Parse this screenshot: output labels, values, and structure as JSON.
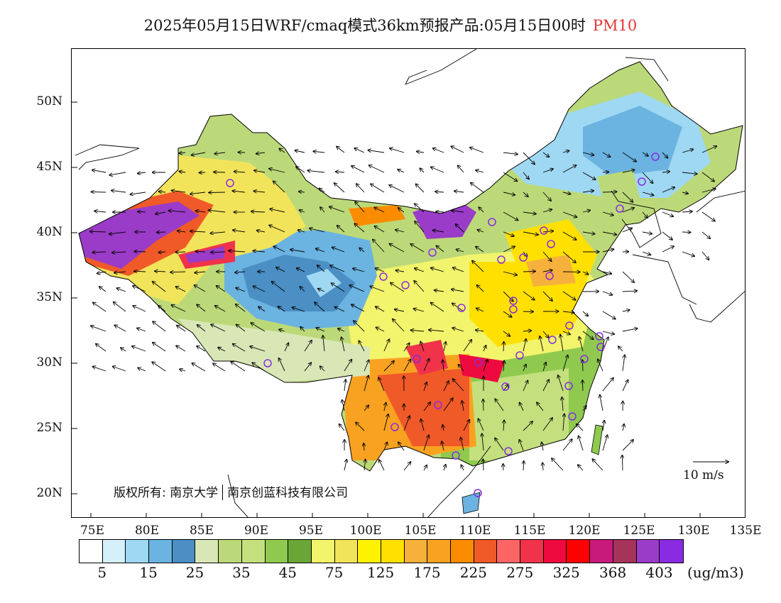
{
  "title": {
    "main": "2025年05月15日WRF/cmaq模式36km预报产品:05月15日00时",
    "species": "PM10",
    "species_color": "#e53535"
  },
  "axes": {
    "lat_labels": [
      "50N",
      "45N",
      "40N",
      "35N",
      "30N",
      "25N",
      "20N"
    ],
    "lon_labels": [
      "75E",
      "80E",
      "85E",
      "90E",
      "95E",
      "100E",
      "105E",
      "110E",
      "115E",
      "120E",
      "125E",
      "130E",
      "135E"
    ]
  },
  "copyright": {
    "left": "版权所有: 南京大学",
    "right": "南京创蓝科技有限公司"
  },
  "wind_reference": {
    "label": "10 m/s"
  },
  "legend": {
    "colors": [
      "#ffffff",
      "#d6f0fb",
      "#9fd8f3",
      "#6bb3e0",
      "#4b8fc4",
      "#d9e7b7",
      "#bcd979",
      "#c4e07e",
      "#8fca4f",
      "#6aa637",
      "#f2f46c",
      "#f2e45a",
      "#fff200",
      "#ffe000",
      "#f6b13c",
      "#f9a221",
      "#fb8c00",
      "#f05a28",
      "#fd6565",
      "#f0334a",
      "#ee0a3f",
      "#fe0000",
      "#c81a7a",
      "#a6335a",
      "#9a3cc8",
      "#8a2be2"
    ],
    "labels": [
      "5",
      "15",
      "25",
      "35",
      "45",
      "75",
      "125",
      "175",
      "225",
      "275",
      "325",
      "368",
      "403"
    ],
    "unit": "(ug/m3)"
  },
  "stations_color": "#8a2be2"
}
